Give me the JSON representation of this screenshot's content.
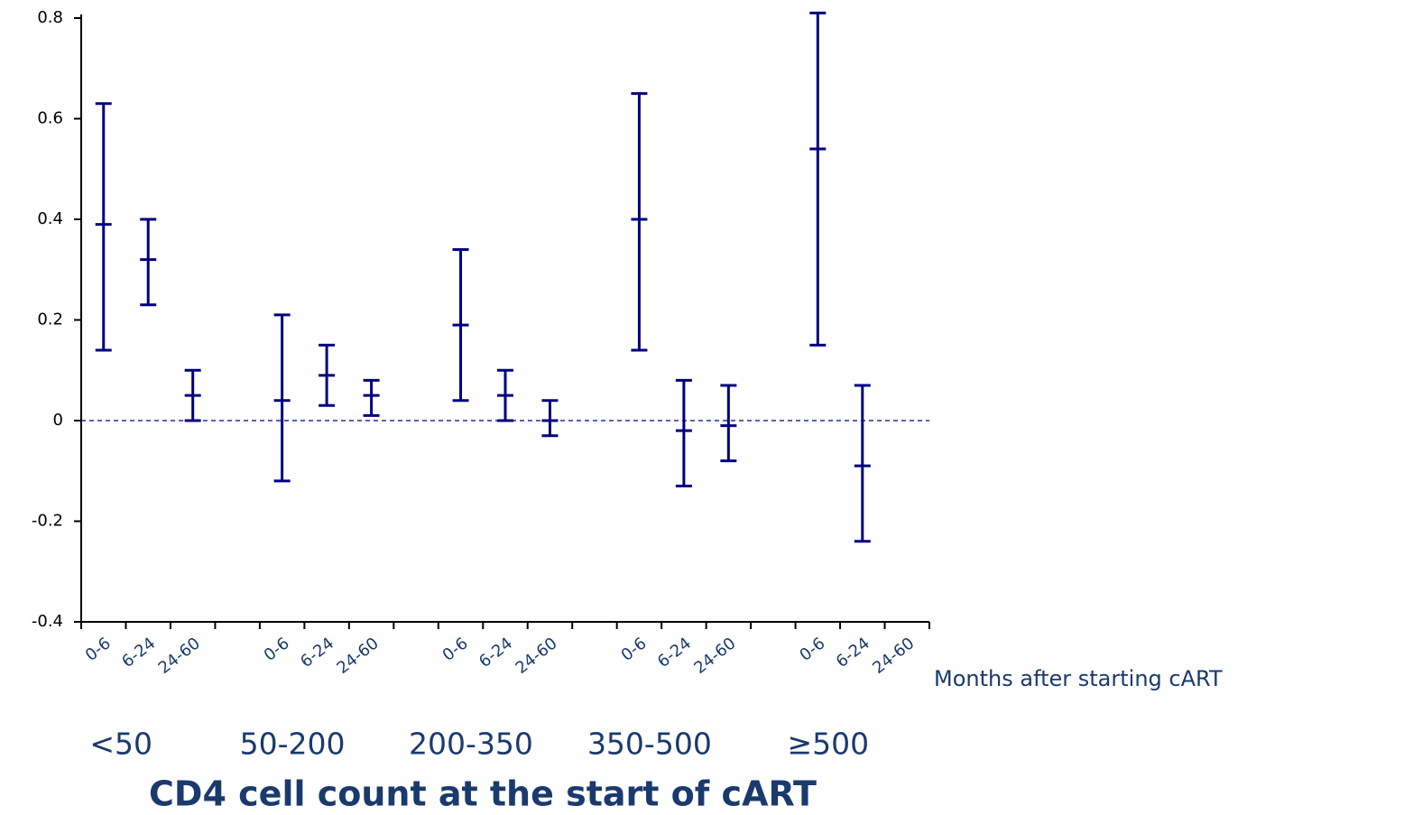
{
  "chart_data": {
    "type": "errorbar",
    "categories": [
      "0-6",
      "6-24",
      "24-60",
      null,
      "0-6",
      "6-24",
      "24-60",
      null,
      "0-6",
      "6-24",
      "24-60",
      null,
      "0-6",
      "6-24",
      "24-60",
      null,
      "0-6",
      "6-24",
      "24-60"
    ],
    "values": [
      0.39,
      0.32,
      0.05,
      null,
      0.04,
      0.09,
      0.05,
      null,
      0.19,
      0.05,
      0.0,
      null,
      0.4,
      -0.02,
      -0.01,
      null,
      0.54,
      -0.09,
      null
    ],
    "lower": [
      0.14,
      0.23,
      0.0,
      null,
      -0.12,
      0.03,
      0.01,
      null,
      0.04,
      0.0,
      -0.03,
      null,
      0.14,
      -0.13,
      -0.08,
      null,
      0.15,
      -0.24,
      null
    ],
    "upper": [
      0.63,
      0.4,
      0.1,
      null,
      0.21,
      0.15,
      0.08,
      null,
      0.34,
      0.1,
      0.04,
      null,
      0.65,
      0.08,
      0.07,
      null,
      0.81,
      0.07,
      null
    ],
    "group_labels": [
      "<50",
      "50-200",
      "200-350",
      "350-500",
      "≥500"
    ],
    "x_label": "Months after starting cART",
    "group_title": "CD4 cell count at the start of cART",
    "ylim": [
      -0.4,
      0.8
    ],
    "yticks": [
      -0.4,
      -0.2,
      0,
      0.2,
      0.4,
      0.6,
      0.8
    ],
    "color": "#000080",
    "zero_line": true
  }
}
